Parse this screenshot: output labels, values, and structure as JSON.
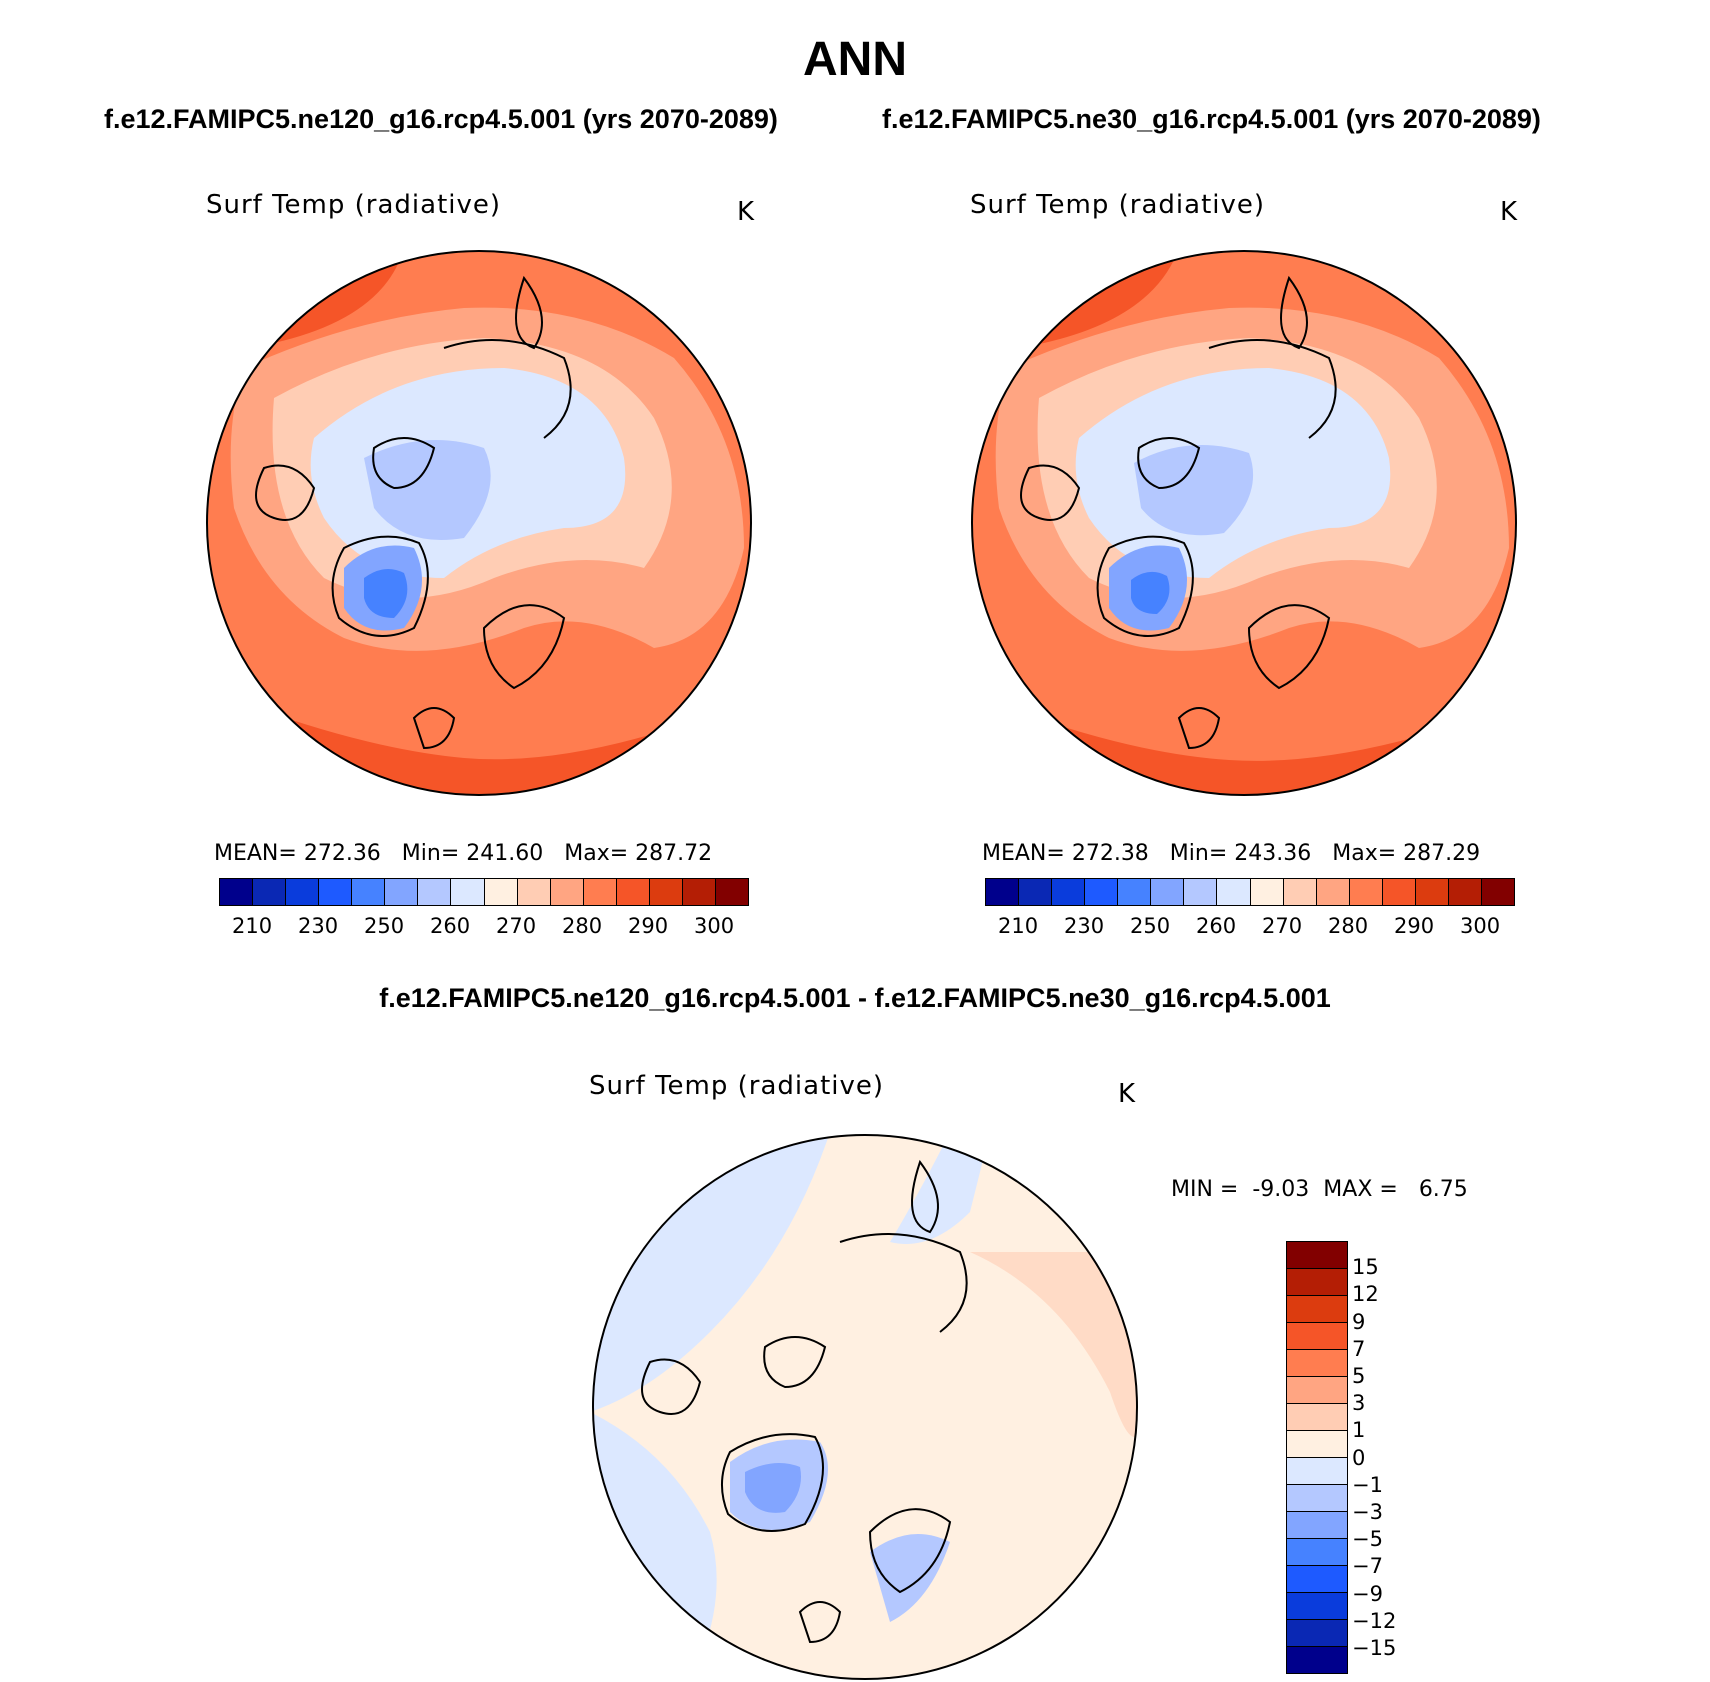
{
  "figure": {
    "season": "ANN",
    "case1_title": "f.e12.FAMIPC5.ne120_g16.rcp4.5.001 (yrs 2070-2089)",
    "case2_title": "f.e12.FAMIPC5.ne30_g16.rcp4.5.001 (yrs 2070-2089)",
    "diff_title": "f.e12.FAMIPC5.ne120_g16.rcp4.5.001 - f.e12.FAMIPC5.ne30_g16.rcp4.5.001"
  },
  "panels": {
    "left": {
      "variable": "Surf Temp (radiative)",
      "units": "K",
      "stats": {
        "mean_label": "MEAN=",
        "mean": "272.36",
        "min_label": "Min=",
        "min": "241.60",
        "max_label": "Max=",
        "max": "287.72"
      }
    },
    "right": {
      "variable": "Surf Temp (radiative)",
      "units": "K",
      "stats": {
        "mean_label": "MEAN=",
        "mean": "272.38",
        "min_label": "Min=",
        "min": "243.36",
        "max_label": "Max=",
        "max": "287.29"
      }
    },
    "diff": {
      "variable": "Surf Temp (radiative)",
      "units": "K",
      "stats": {
        "min_label": "MIN =",
        "min": "-9.03",
        "max_label": "MAX =",
        "max": "6.75"
      }
    }
  },
  "colorbars": {
    "abs_colors": [
      "#00008c",
      "#0a28b4",
      "#0a3cdc",
      "#1e5aff",
      "#4682ff",
      "#82a5ff",
      "#b4c8ff",
      "#dce8ff",
      "#fff0e1",
      "#ffcdb4",
      "#ffa582",
      "#ff7d50",
      "#f55528",
      "#dc3c0f",
      "#b41e05",
      "#820000"
    ],
    "abs_ticks": [
      "210",
      "230",
      "250",
      "260",
      "270",
      "280",
      "290",
      "300"
    ],
    "diff_colors": [
      "#820000",
      "#b41e05",
      "#dc3c0f",
      "#f55528",
      "#ff7d50",
      "#ffa582",
      "#ffcdb4",
      "#fff0e1",
      "#dce8ff",
      "#b4c8ff",
      "#82a5ff",
      "#4682ff",
      "#1e5aff",
      "#0a3cdc",
      "#0a28b4",
      "#00008c"
    ],
    "diff_ticks": [
      "15",
      "12",
      "9",
      "7",
      "5",
      "3",
      "1",
      "0",
      "−1",
      "−3",
      "−5",
      "−7",
      "−9",
      "−12",
      "−15"
    ]
  }
}
